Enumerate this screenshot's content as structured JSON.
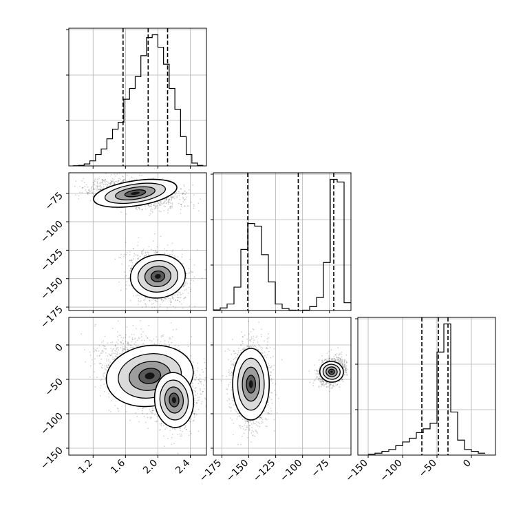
{
  "colors": {
    "line": "#000000",
    "grid": "#b0b0b0",
    "background": "#ffffff",
    "scatter": "#000000"
  },
  "chart_data": [
    {
      "type": "histogram",
      "panel": "hist-param-1",
      "xlim": [
        0.9,
        2.6
      ],
      "bins": [
        0.95,
        1.02,
        1.09,
        1.16,
        1.23,
        1.3,
        1.37,
        1.44,
        1.51,
        1.58,
        1.65,
        1.72,
        1.79,
        1.86,
        1.93,
        2.0,
        2.07,
        2.14,
        2.21,
        2.28,
        2.35,
        2.42,
        2.49,
        2.56
      ],
      "counts": [
        0.3,
        1.0,
        3.5,
        9,
        20,
        30,
        48,
        65,
        77,
        118,
        137,
        158,
        195,
        227,
        232,
        210,
        180,
        137,
        100,
        52,
        20,
        5,
        1
      ],
      "quantiles": [
        1.57,
        1.88,
        2.12
      ],
      "grid": true
    },
    {
      "type": "histogram",
      "panel": "hist-param-2",
      "xlim": [
        -183,
        -55
      ],
      "bins": [
        -183,
        -176.6,
        -170.2,
        -163.8,
        -157.4,
        -151,
        -144.6,
        -138.2,
        -131.8,
        -125.4,
        -119,
        -112.6,
        -106.2,
        -99.8,
        -93.4,
        -87,
        -80.6,
        -74.2,
        -67.8,
        -61.4
      ],
      "counts": [
        0.5,
        2,
        5,
        18,
        47,
        67,
        65,
        43,
        22,
        5,
        1.5,
        0.3,
        0,
        0.3,
        3,
        10,
        37,
        101,
        99,
        6
      ],
      "quantiles": [
        -151,
        -104,
        -71
      ],
      "grid": true
    },
    {
      "type": "histogram",
      "panel": "hist-param-3",
      "xlim": [
        -165,
        35
      ],
      "bins": [
        -150,
        -140,
        -130,
        -120,
        -110,
        -100,
        -90,
        -80,
        -70,
        -60,
        -50,
        -40,
        -30,
        -20,
        -10,
        0,
        10,
        20
      ],
      "counts": [
        0.5,
        1,
        2,
        3,
        5,
        7,
        9,
        12,
        14,
        17,
        55,
        70,
        23,
        8,
        3,
        2,
        1
      ],
      "quantiles": [
        -72,
        -48,
        -34
      ],
      "grid": true
    },
    {
      "type": "contour",
      "panel": "corner-2-vs-1",
      "xlim": [
        0.9,
        2.6
      ],
      "ylim": [
        -178,
        -57
      ],
      "clusters": [
        {
          "cx": 1.72,
          "cy": -75,
          "sx": 0.26,
          "sy": 5.5,
          "rho": -0.35,
          "n": 1500
        },
        {
          "cx": 2.0,
          "cy": -148,
          "sx": 0.17,
          "sy": 9.5,
          "rho": -0.25,
          "n": 1400
        }
      ],
      "grid": true
    },
    {
      "type": "contour",
      "panel": "corner-3-vs-1",
      "xlim": [
        0.9,
        2.6
      ],
      "ylim": [
        -160,
        40
      ],
      "clusters": [
        {
          "cx": 1.9,
          "cy": -45,
          "sx": 0.27,
          "sy": 22,
          "rho": -0.35,
          "n": 2700
        },
        {
          "cx": 2.2,
          "cy": -80,
          "sx": 0.12,
          "sy": 20,
          "rho": -0.2,
          "n": 800
        }
      ],
      "grid": true
    },
    {
      "type": "contour",
      "panel": "corner-3-vs-2",
      "xlim": [
        -183,
        -55
      ],
      "ylim": [
        -160,
        40
      ],
      "clusters": [
        {
          "cx": -148,
          "cy": -57,
          "sx": 8.5,
          "sy": 26,
          "rho": 0.0,
          "n": 1600
        },
        {
          "cx": -73,
          "cy": -39,
          "sx": 5.5,
          "sy": 7.5,
          "rho": 0.3,
          "n": 1500
        }
      ],
      "grid": true
    }
  ],
  "axes": {
    "x1_ticks": [
      "1.2",
      "1.6",
      "2.0",
      "2.4"
    ],
    "x1_values": [
      1.2,
      1.6,
      2.0,
      2.4
    ],
    "x2_ticks": [
      "−175",
      "−150",
      "−125",
      "−100",
      "−75"
    ],
    "x2_values": [
      -175,
      -150,
      -125,
      -100,
      -75
    ],
    "x3_ticks": [
      "−150",
      "−100",
      "−50",
      "0"
    ],
    "x3_values": [
      -150,
      -100,
      -50,
      0
    ],
    "y2_ticks": [
      "−75",
      "−100",
      "−125",
      "−150",
      "−175"
    ],
    "y2_values": [
      -75,
      -100,
      -125,
      -150,
      -175
    ],
    "y3_ticks": [
      "0",
      "−50",
      "−100",
      "−150"
    ],
    "y3_values": [
      0,
      -50,
      -100,
      -150
    ]
  }
}
